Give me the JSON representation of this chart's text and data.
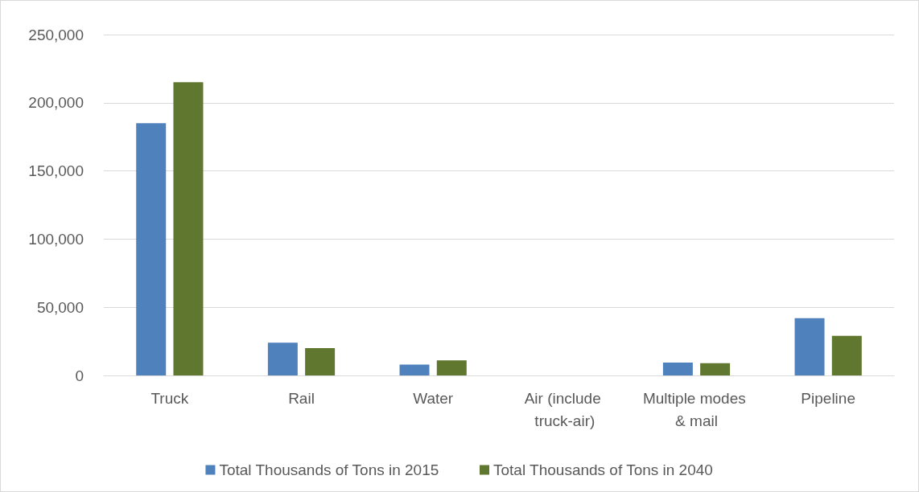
{
  "chart_data": {
    "type": "bar",
    "categories": [
      "Truck",
      "Rail",
      "Water",
      "Air (include truck-air)",
      "Multiple modes & mail",
      "Pipeline"
    ],
    "series": [
      {
        "name": "Total Thousands of Tons in 2015",
        "color": "#4f81bd",
        "values": [
          185000,
          24000,
          8000,
          0,
          9400,
          42000
        ]
      },
      {
        "name": "Total Thousands of Tons in 2040",
        "color": "#60772f",
        "values": [
          215000,
          20000,
          11000,
          0,
          9000,
          29000
        ]
      }
    ],
    "ylim": [
      0,
      250000
    ],
    "yticks": [
      0,
      {
        "value": 50000,
        "label": "50,000"
      },
      {
        "value": 100000,
        "label": "100,000"
      },
      {
        "value": 150000,
        "label": "150,000"
      },
      {
        "value": 200000,
        "label": "200,000"
      },
      {
        "value": 250000,
        "label": "250,000"
      }
    ],
    "grid": "y",
    "legend": "bottom"
  }
}
